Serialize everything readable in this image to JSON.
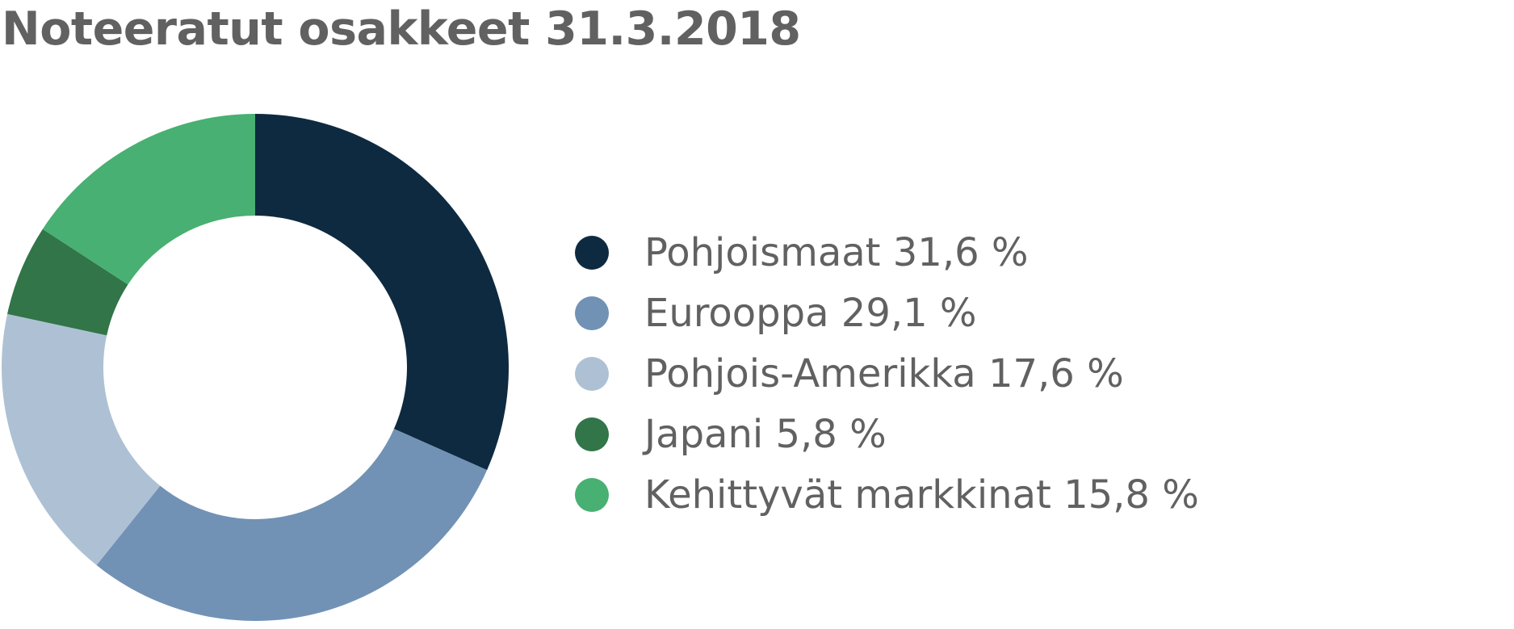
{
  "chart_data": {
    "type": "pie",
    "title": "Noteeratut osakkeet 31.3.2018",
    "donut": true,
    "legend_position": "right",
    "slices": [
      {
        "label": "Pohjoismaat 31,6 %",
        "value": 31.6,
        "color": "#0e2a40"
      },
      {
        "label": "Eurooppa 29,1 %",
        "value": 29.1,
        "color": "#7192b5"
      },
      {
        "label": "Pohjois-Amerikka 17,6 %",
        "value": 17.6,
        "color": "#aec1d4"
      },
      {
        "label": "Japani 5,8 %",
        "value": 5.8,
        "color": "#317548"
      },
      {
        "label": "Kehittyvät markkinat 15,8 %",
        "value": 15.8,
        "color": "#48b072"
      }
    ]
  }
}
